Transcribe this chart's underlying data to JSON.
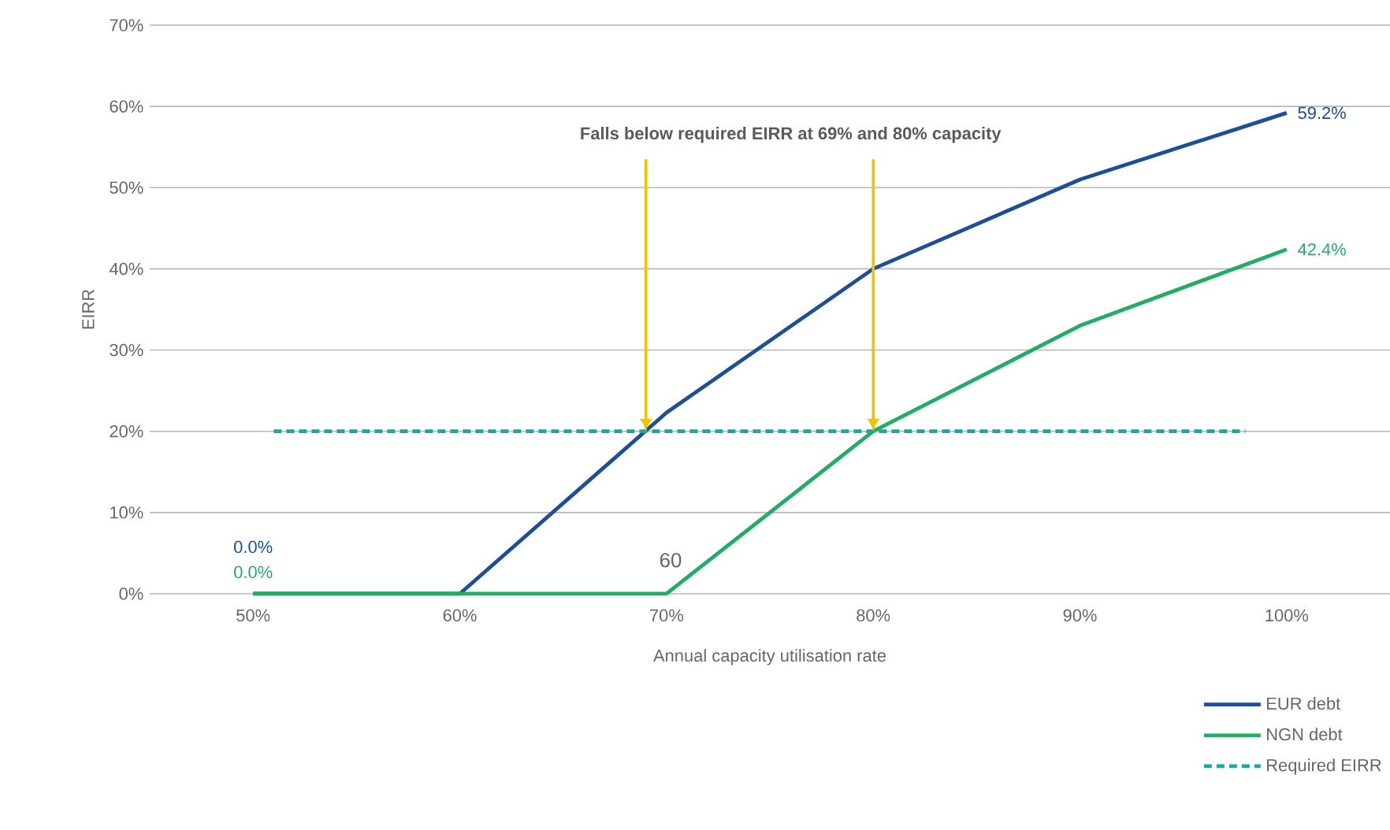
{
  "chart_data": {
    "type": "line",
    "xlabel": "Annual capacity utilisation rate",
    "ylabel": "EIRR",
    "x": [
      50,
      60,
      70,
      80,
      90,
      100
    ],
    "series": [
      {
        "name": "EUR debt",
        "color": "#1c4e9a",
        "values": [
          0,
          0,
          22.3,
          40,
          51,
          59.2
        ],
        "value_labels": [
          "0.0%",
          null,
          null,
          null,
          null,
          "59.2%"
        ]
      },
      {
        "name": "NGN debt",
        "color": "#21ad64",
        "values": [
          0,
          0,
          0,
          20,
          33,
          42.4
        ],
        "value_labels": [
          "0.0%",
          null,
          null,
          null,
          null,
          "42.4%"
        ]
      },
      {
        "name": "Required EIRR",
        "color": "#1aa898",
        "x": [
          51,
          98
        ],
        "values": [
          20,
          20
        ],
        "line_style": "dashed"
      }
    ],
    "xlim": [
      45,
      105
    ],
    "ylim": [
      0,
      70
    ],
    "xticks": [
      {
        "value": 50,
        "label": "50%"
      },
      {
        "value": 60,
        "label": "60%"
      },
      {
        "value": 70,
        "label": "70%"
      },
      {
        "value": 80,
        "label": "80%"
      },
      {
        "value": 90,
        "label": "90%"
      },
      {
        "value": 100,
        "label": "100%"
      }
    ],
    "yticks": [
      {
        "value": 0,
        "label": "0%"
      },
      {
        "value": 10,
        "label": "10%"
      },
      {
        "value": 20,
        "label": "20%"
      },
      {
        "value": 30,
        "label": "30%"
      },
      {
        "value": 40,
        "label": "40%"
      },
      {
        "value": 50,
        "label": "50%"
      },
      {
        "value": 60,
        "label": "60%"
      },
      {
        "value": 70,
        "label": "70%"
      }
    ],
    "annotations": [
      {
        "text": "Falls below required EIRR at 69% and 80% capacity",
        "x": 69,
        "y": 20
      },
      "60"
    ],
    "grid": "y",
    "legend": "bottom right",
    "marker": "none",
    "line_style": "solid"
  }
}
